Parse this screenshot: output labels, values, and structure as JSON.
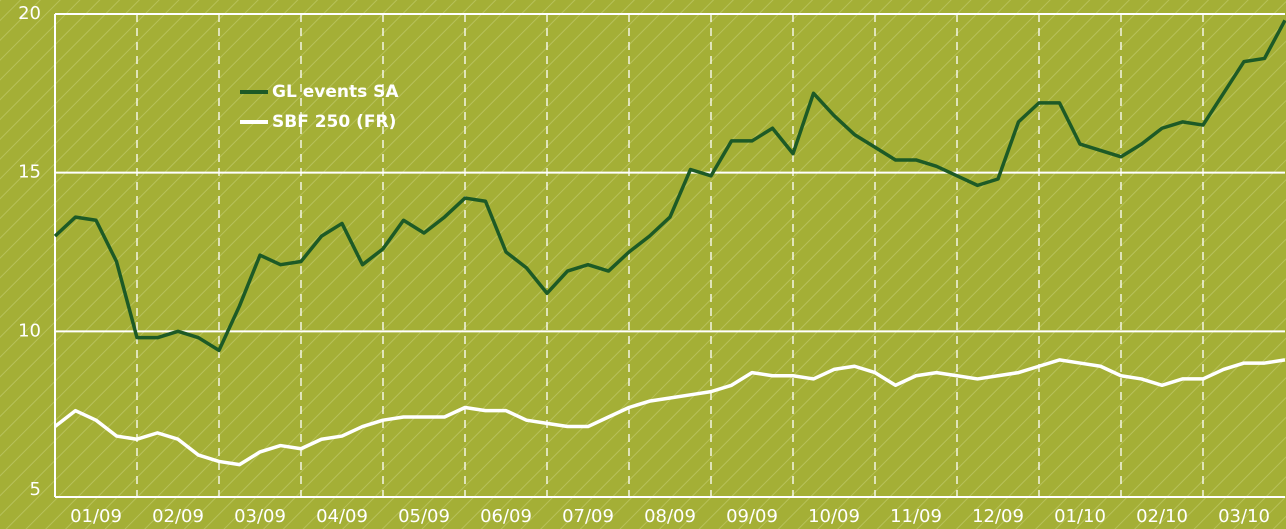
{
  "chart_data": {
    "type": "line",
    "x": [
      0,
      0.25,
      0.5,
      0.75,
      1,
      1.25,
      1.5,
      1.75,
      2,
      2.25,
      2.5,
      2.75,
      3,
      3.25,
      3.5,
      3.75,
      4,
      4.25,
      4.5,
      4.75,
      5,
      5.25,
      5.5,
      5.75,
      6,
      6.25,
      6.5,
      6.75,
      7,
      7.25,
      7.5,
      7.75,
      8,
      8.25,
      8.5,
      8.75,
      9,
      9.25,
      9.5,
      9.75,
      10,
      10.25,
      10.5,
      10.75,
      11,
      11.25,
      11.5,
      11.75,
      12,
      12.25,
      12.5,
      12.75,
      13,
      13.25,
      13.5,
      13.75,
      14,
      14.25,
      14.5,
      14.75,
      15
    ],
    "series": [
      {
        "name": "GL events SA",
        "color": "#1d5a26",
        "values": [
          13.0,
          13.6,
          13.5,
          12.2,
          9.8,
          9.8,
          10.0,
          9.8,
          9.4,
          10.8,
          12.4,
          12.1,
          12.2,
          13.0,
          13.4,
          12.1,
          12.6,
          13.5,
          13.1,
          13.6,
          14.2,
          14.1,
          12.5,
          12.0,
          11.2,
          11.9,
          12.1,
          11.9,
          12.5,
          13.0,
          13.6,
          15.1,
          14.9,
          16.0,
          16.0,
          16.4,
          15.6,
          17.5,
          16.8,
          16.2,
          15.8,
          15.4,
          15.4,
          15.2,
          14.9,
          14.6,
          14.8,
          16.6,
          17.2,
          17.2,
          15.9,
          15.7,
          15.5,
          15.9,
          16.4,
          16.6,
          16.5,
          17.5,
          18.5,
          18.6,
          19.8
        ]
      },
      {
        "name": "SBF 250 (FR)",
        "color": "#ffffff",
        "values": [
          7.0,
          7.5,
          7.2,
          6.7,
          6.6,
          6.8,
          6.6,
          6.1,
          5.9,
          5.8,
          6.2,
          6.4,
          6.3,
          6.6,
          6.7,
          7.0,
          7.2,
          7.3,
          7.3,
          7.3,
          7.6,
          7.5,
          7.5,
          7.2,
          7.1,
          7.0,
          7.0,
          7.3,
          7.6,
          7.8,
          7.9,
          8.0,
          8.1,
          8.3,
          8.7,
          8.6,
          8.6,
          8.5,
          8.8,
          8.9,
          8.7,
          8.3,
          8.6,
          8.7,
          8.6,
          8.5,
          8.6,
          8.7,
          8.9,
          9.1,
          9.0,
          8.9,
          8.6,
          8.5,
          8.3,
          8.5,
          8.5,
          8.8,
          9.0,
          9.0,
          9.1
        ]
      }
    ],
    "xlim": [
      0,
      15
    ],
    "xticks": [
      {
        "value": 0,
        "label": "01/09"
      },
      {
        "value": 1,
        "label": "02/09"
      },
      {
        "value": 2,
        "label": "03/09"
      },
      {
        "value": 3,
        "label": "04/09"
      },
      {
        "value": 4,
        "label": "05/09"
      },
      {
        "value": 5,
        "label": "06/09"
      },
      {
        "value": 6,
        "label": "07/09"
      },
      {
        "value": 7,
        "label": "08/09"
      },
      {
        "value": 8,
        "label": "09/09"
      },
      {
        "value": 9,
        "label": "10/09"
      },
      {
        "value": 10,
        "label": "11/09"
      },
      {
        "value": 11,
        "label": "12/09"
      },
      {
        "value": 12,
        "label": "01/10"
      },
      {
        "value": 13,
        "label": "02/10"
      },
      {
        "value": 14,
        "label": "03/10"
      }
    ],
    "ylim": [
      5,
      20
    ],
    "yticks": [
      5,
      10,
      15,
      20
    ],
    "grid": true,
    "legend": "upper left"
  }
}
